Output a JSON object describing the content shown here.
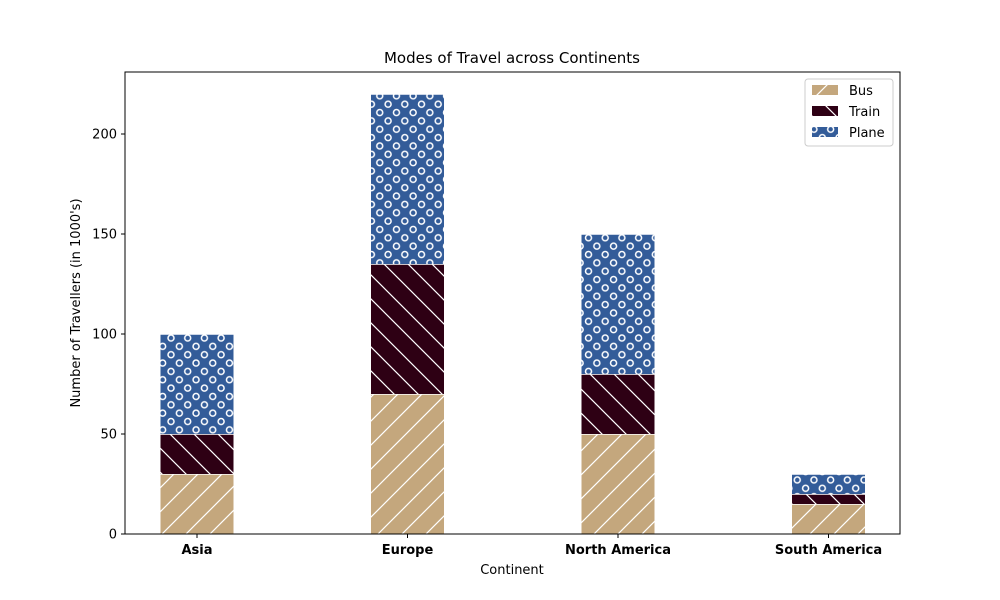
{
  "chart_data": {
    "type": "bar",
    "stacked": true,
    "title": "Modes of Travel across Continents",
    "xlabel": "Continent",
    "ylabel": "Number of Travellers (in 1000's)",
    "categories": [
      "Asia",
      "Europe",
      "North America",
      "South America"
    ],
    "ylim": [
      0,
      231
    ],
    "yticks": [
      0,
      50,
      100,
      150,
      200
    ],
    "grid": false,
    "legend_position": "top-right",
    "series": [
      {
        "name": "Bus",
        "values": [
          30,
          70,
          50,
          15
        ],
        "color": "#c4a77d",
        "hatch": "forward-diagonal"
      },
      {
        "name": "Train",
        "values": [
          20,
          65,
          30,
          5
        ],
        "color": "#2e0014",
        "hatch": "back-diagonal"
      },
      {
        "name": "Plane",
        "values": [
          50,
          85,
          70,
          10
        ],
        "color": "#335c99",
        "hatch": "circles"
      }
    ]
  }
}
